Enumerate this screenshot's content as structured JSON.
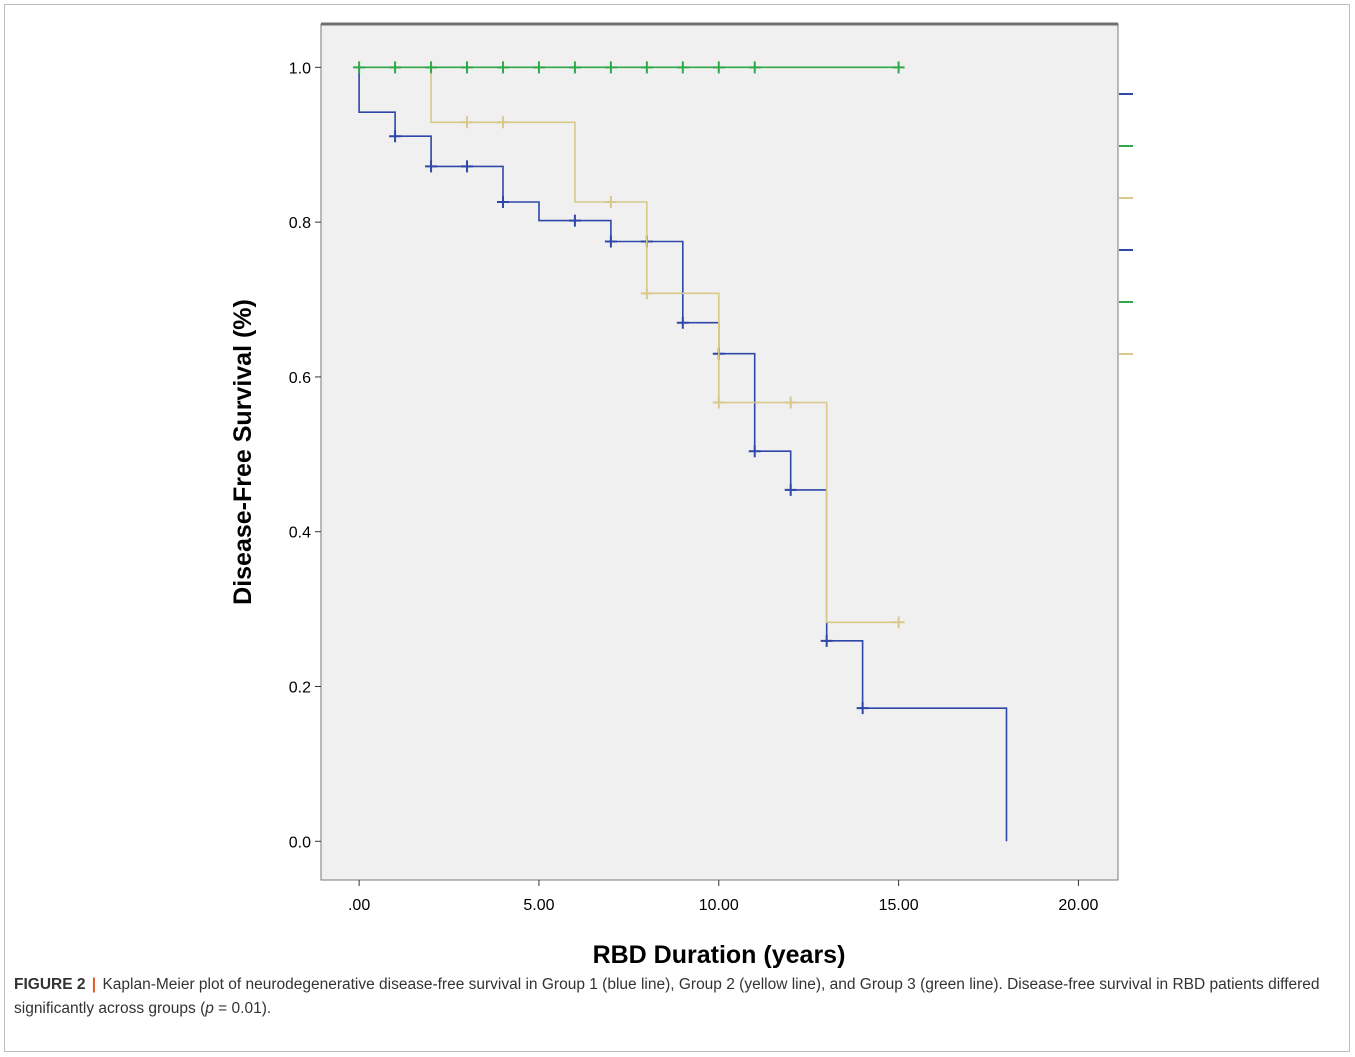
{
  "chart_data": {
    "type": "line",
    "xlabel": "RBD Duration (years)",
    "ylabel": "Disease-Free Survival (%)",
    "xlim": [
      -1.06,
      21.1
    ],
    "ylim": [
      -0.05,
      1.056
    ],
    "x_ticks": [
      0,
      5,
      10,
      15,
      20
    ],
    "x_tick_labels": [
      ".00",
      "5.00",
      "10.00",
      "15.00",
      "20.00"
    ],
    "y_ticks": [
      0,
      0.2,
      0.4,
      0.6,
      0.8,
      1.0
    ],
    "y_tick_labels": [
      "0.0",
      "0.2",
      "0.4",
      "0.6",
      "0.8",
      "1.0"
    ],
    "grid": false,
    "background": "#f0f0f0",
    "series": [
      {
        "color": "#2f47a8",
        "step": [
          [
            0,
            1.0
          ],
          [
            0,
            0.942
          ],
          [
            1,
            0.942
          ],
          [
            1,
            0.911
          ],
          [
            2,
            0.911
          ],
          [
            2,
            0.872
          ],
          [
            4,
            0.872
          ],
          [
            4,
            0.826
          ],
          [
            5,
            0.826
          ],
          [
            5,
            0.802
          ],
          [
            7,
            0.802
          ],
          [
            7,
            0.775
          ],
          [
            9,
            0.775
          ],
          [
            9,
            0.67
          ],
          [
            10,
            0.67
          ],
          [
            10,
            0.63
          ],
          [
            11,
            0.63
          ],
          [
            11,
            0.504
          ],
          [
            12,
            0.504
          ],
          [
            12,
            0.454
          ],
          [
            13,
            0.454
          ],
          [
            13,
            0.259
          ],
          [
            14,
            0.259
          ],
          [
            14,
            0.172
          ],
          [
            18,
            0.172
          ],
          [
            18,
            0.0
          ]
        ],
        "censored": [
          [
            1,
            0.911
          ],
          [
            2,
            0.872
          ],
          [
            3,
            0.872
          ],
          [
            4,
            0.826
          ],
          [
            6,
            0.802
          ],
          [
            7,
            0.775
          ],
          [
            8,
            0.775
          ],
          [
            9,
            0.67
          ],
          [
            10,
            0.63
          ],
          [
            11,
            0.504
          ],
          [
            12,
            0.454
          ],
          [
            13,
            0.259
          ],
          [
            14,
            0.172
          ]
        ]
      },
      {
        "color": "#d8c98a",
        "step": [
          [
            0,
            1.0
          ],
          [
            2,
            1.0
          ],
          [
            2,
            0.929
          ],
          [
            6,
            0.929
          ],
          [
            6,
            0.826
          ],
          [
            8,
            0.826
          ],
          [
            8,
            0.708
          ],
          [
            10,
            0.708
          ],
          [
            10,
            0.567
          ],
          [
            13,
            0.567
          ],
          [
            13,
            0.283
          ],
          [
            15,
            0.283
          ]
        ],
        "censored": [
          [
            3,
            0.929
          ],
          [
            4,
            0.929
          ],
          [
            7,
            0.826
          ],
          [
            8,
            0.708
          ],
          [
            10,
            0.567
          ],
          [
            12,
            0.567
          ],
          [
            15,
            0.283
          ]
        ]
      },
      {
        "color": "#2ea84a",
        "step": [
          [
            0,
            1.0
          ],
          [
            15,
            1.0
          ]
        ],
        "censored": [
          [
            0,
            1.0
          ],
          [
            1,
            1.0
          ],
          [
            2,
            1.0
          ],
          [
            3,
            1.0
          ],
          [
            4,
            1.0
          ],
          [
            5,
            1.0
          ],
          [
            6,
            1.0
          ],
          [
            7,
            1.0
          ],
          [
            8,
            1.0
          ],
          [
            9,
            1.0
          ],
          [
            10,
            1.0
          ],
          [
            11,
            1.0
          ],
          [
            15,
            1.0
          ]
        ]
      }
    ],
    "legend": {
      "placement": "right",
      "items": [
        {
          "color": "#2f47a8",
          "style": "line"
        },
        {
          "color": "#2ea84a",
          "style": "line"
        },
        {
          "color": "#d8c98a",
          "style": "line"
        },
        {
          "color": "#2f47a8",
          "style": "censor"
        },
        {
          "color": "#2ea84a",
          "style": "censor"
        },
        {
          "color": "#d8c98a",
          "style": "censor"
        }
      ]
    }
  },
  "caption": {
    "label": "FIGURE 2",
    "separator": "|",
    "text_1": " Kaplan-Meier plot of neurodegenerative disease-free survival in Group 1 (blue line), Group 2 (yellow line), and Group 3 (green line). Disease-free survival in RBD patients differed significantly across groups (",
    "p_symbol": "p",
    "text_2": " = 0.01)."
  }
}
